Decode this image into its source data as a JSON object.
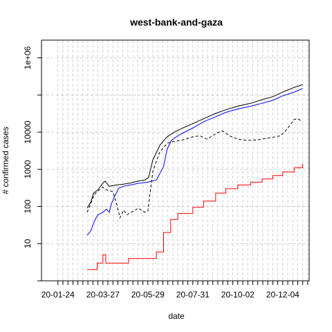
{
  "chart_data": {
    "type": "line",
    "title": "west-bank-and-gaza",
    "xlabel": "date",
    "ylabel": "# confirmed cases",
    "y_scale": "log",
    "xlim": [
      "2020-01-01",
      "2021-01-10"
    ],
    "ylim": [
      1,
      3000000
    ],
    "grid": true,
    "legend": "none",
    "x_tick_labels": [
      "20-01-24",
      "20-03-27",
      "20-05-29",
      "20-07-31",
      "20-10-02",
      "20-12-04"
    ],
    "x_tick_dates": [
      "2020-01-24",
      "2020-03-27",
      "2020-05-29",
      "2020-07-31",
      "2020-10-02",
      "2020-12-04"
    ],
    "y_tick_labels": [
      "10",
      "100",
      "1000",
      "10000",
      "1e+06"
    ],
    "y_tick_values": [
      10,
      100,
      1000,
      10000,
      1000000
    ],
    "series": [
      {
        "color": "#000000",
        "dash": "solid",
        "x": [
          "2020-03-05",
          "2020-03-10",
          "2020-03-14",
          "2020-03-20",
          "2020-03-26",
          "2020-03-30",
          "2020-04-05",
          "2020-04-15",
          "2020-04-25",
          "2020-05-05",
          "2020-05-15",
          "2020-05-25",
          "2020-05-30",
          "2020-06-05",
          "2020-06-15",
          "2020-06-25",
          "2020-07-05",
          "2020-07-15",
          "2020-07-31",
          "2020-08-15",
          "2020-09-01",
          "2020-09-15",
          "2020-10-02",
          "2020-10-20",
          "2020-11-05",
          "2020-11-20",
          "2020-12-04",
          "2020-12-20",
          "2021-01-01"
        ],
        "y": [
          90,
          130,
          230,
          280,
          400,
          480,
          350,
          380,
          400,
          430,
          480,
          520,
          600,
          1800,
          4500,
          7500,
          10000,
          12500,
          17000,
          23000,
          32000,
          40000,
          50000,
          60000,
          75000,
          90000,
          120000,
          160000,
          190000
        ]
      },
      {
        "color": "#0000ff",
        "dash": "solid",
        "x": [
          "2020-03-05",
          "2020-03-10",
          "2020-03-15",
          "2020-03-20",
          "2020-03-27",
          "2020-04-01",
          "2020-04-05",
          "2020-04-08",
          "2020-04-12",
          "2020-04-18",
          "2020-04-25",
          "2020-05-05",
          "2020-05-15",
          "2020-05-29",
          "2020-06-10",
          "2020-06-20",
          "2020-06-25",
          "2020-07-01",
          "2020-07-08",
          "2020-07-15",
          "2020-07-31",
          "2020-08-15",
          "2020-09-01",
          "2020-09-15",
          "2020-10-02",
          "2020-10-20",
          "2020-11-05",
          "2020-11-20",
          "2020-12-04",
          "2020-12-20",
          "2021-01-01"
        ],
        "y": [
          17,
          22,
          40,
          60,
          70,
          85,
          70,
          120,
          180,
          310,
          350,
          380,
          420,
          450,
          520,
          1200,
          3500,
          6000,
          7500,
          9000,
          13000,
          19000,
          26000,
          34000,
          42000,
          50000,
          60000,
          72000,
          95000,
          120000,
          150000
        ]
      },
      {
        "color": "#ff0000",
        "dash": "solid",
        "x": [
          "2020-03-05",
          "2020-03-18",
          "2020-03-19",
          "2020-03-25",
          "2020-03-27",
          "2020-03-28",
          "2020-03-31",
          "2020-04-04",
          "2020-05-01",
          "2020-05-02",
          "2020-06-08",
          "2020-06-10",
          "2020-06-20",
          "2020-06-30",
          "2020-07-10",
          "2020-07-31",
          "2020-08-15",
          "2020-09-01",
          "2020-09-15",
          "2020-10-02",
          "2020-10-20",
          "2020-11-05",
          "2020-11-20",
          "2020-12-04",
          "2020-12-20",
          "2021-01-01"
        ],
        "y": [
          2,
          2,
          3,
          3,
          5,
          5,
          3,
          3,
          3,
          4,
          4,
          6,
          20,
          45,
          65,
          95,
          140,
          230,
          300,
          380,
          450,
          550,
          680,
          850,
          1100,
          1400
        ]
      },
      {
        "color": "#000000",
        "dash": "dashed",
        "x": [
          "2020-03-05",
          "2020-03-10",
          "2020-03-15",
          "2020-03-20",
          "2020-03-27",
          "2020-04-01",
          "2020-04-05",
          "2020-04-10",
          "2020-04-15",
          "2020-04-20",
          "2020-04-25",
          "2020-04-30",
          "2020-05-05",
          "2020-05-10",
          "2020-05-15",
          "2020-05-20",
          "2020-05-25",
          "2020-05-29",
          "2020-06-05",
          "2020-06-15",
          "2020-06-25",
          "2020-07-01",
          "2020-07-15",
          "2020-07-31",
          "2020-08-10",
          "2020-08-20",
          "2020-09-01",
          "2020-09-10",
          "2020-09-20",
          "2020-10-02",
          "2020-10-15",
          "2020-10-30",
          "2020-11-15",
          "2020-12-01",
          "2020-12-10",
          "2020-12-20",
          "2020-12-25",
          "2021-01-01"
        ],
        "y": [
          70,
          120,
          210,
          260,
          330,
          280,
          270,
          250,
          120,
          50,
          80,
          60,
          70,
          75,
          90,
          80,
          70,
          75,
          900,
          3000,
          5000,
          5500,
          6000,
          7500,
          8000,
          6500,
          9000,
          11000,
          8000,
          6500,
          6000,
          6200,
          7000,
          8000,
          12000,
          22000,
          23000,
          19000
        ]
      }
    ]
  }
}
